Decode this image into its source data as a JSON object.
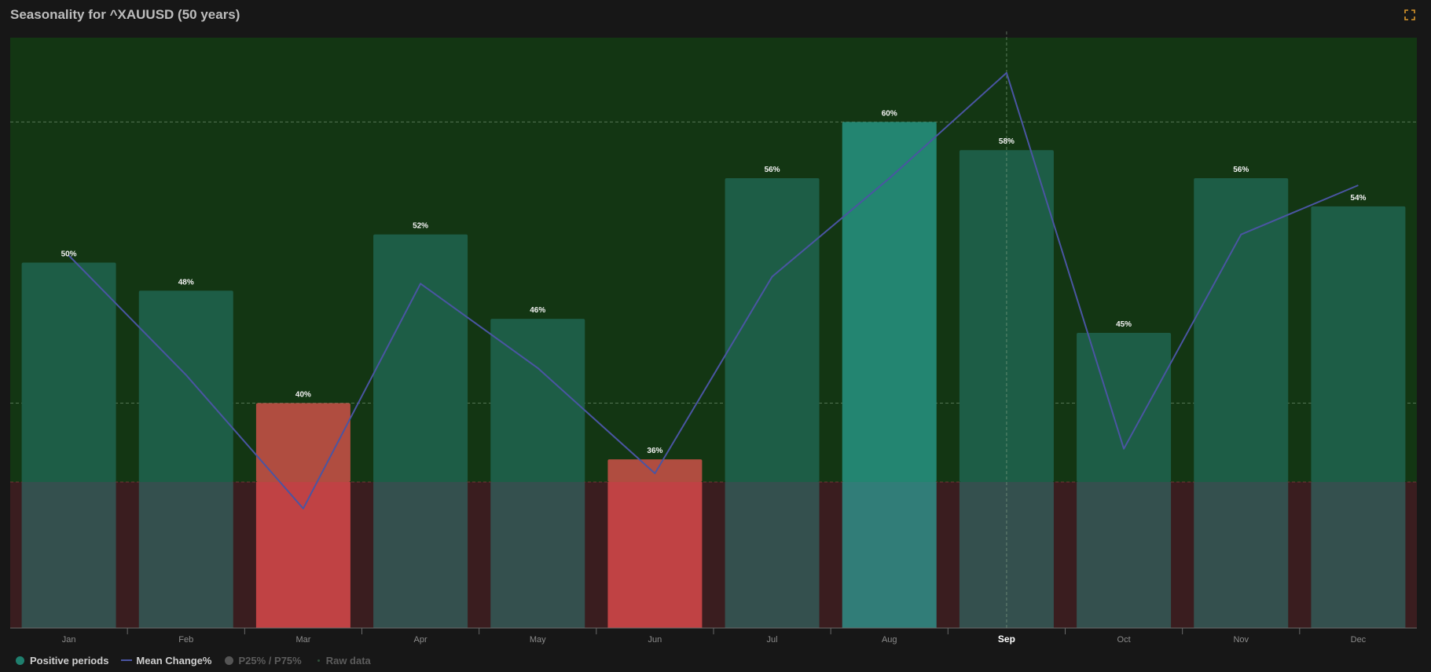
{
  "title": "Seasonality for ^XAUUSD (50 years)",
  "colors": {
    "background": "#171717",
    "plot_positive": "#133613",
    "plot_negative": "#3a1d1f",
    "bar_normal": "#1d5d46",
    "bar_normal_lower": "#34504e",
    "bar_low": "#b04d40",
    "bar_low_lower": "#c04244",
    "bar_high": "#238571",
    "bar_high_lower": "#317d78",
    "mean_line": "#4a55a2",
    "crosshair": "#8aa88a",
    "expand_icon": "#d9962a"
  },
  "expand_icon": "fullscreen-expand-icon",
  "chart_data": {
    "type": "bar",
    "categories": [
      "Jan",
      "Feb",
      "Mar",
      "Apr",
      "May",
      "Jun",
      "Jul",
      "Aug",
      "Sep",
      "Oct",
      "Nov",
      "Dec"
    ],
    "highlighted_category": "Sep",
    "series": [
      {
        "name": "Positive periods",
        "type": "bar",
        "values": [
          50,
          48,
          40,
          52,
          46,
          36,
          56,
          60,
          58,
          45,
          56,
          54
        ],
        "labels": [
          "50%",
          "48%",
          "40%",
          "52%",
          "46%",
          "36%",
          "56%",
          "60%",
          "58%",
          "45%",
          "56%",
          "54%"
        ]
      },
      {
        "name": "Mean Change%",
        "type": "line",
        "values": [
          1.6,
          -1.8,
          -5.6,
          0.8,
          -1.6,
          -4.6,
          1.0,
          3.8,
          6.8,
          -3.9,
          2.2,
          3.6
        ]
      }
    ],
    "bar_axis": {
      "min": 24,
      "max": 66,
      "gridlines": [
        40,
        60
      ]
    },
    "line_axis": {
      "min": -9,
      "max": 7.8
    },
    "split_value": 24,
    "legend": {
      "position": "bottom-left",
      "items": [
        {
          "label": "Positive periods",
          "active": true,
          "color": "#1f7f6e"
        },
        {
          "label": "Mean Change%",
          "active": true,
          "color": "#4a55a2"
        },
        {
          "label": "P25% / P75%",
          "active": false,
          "color": "#555555"
        },
        {
          "label": "Raw data",
          "active": false,
          "color": "#2f4f3a"
        }
      ]
    }
  }
}
